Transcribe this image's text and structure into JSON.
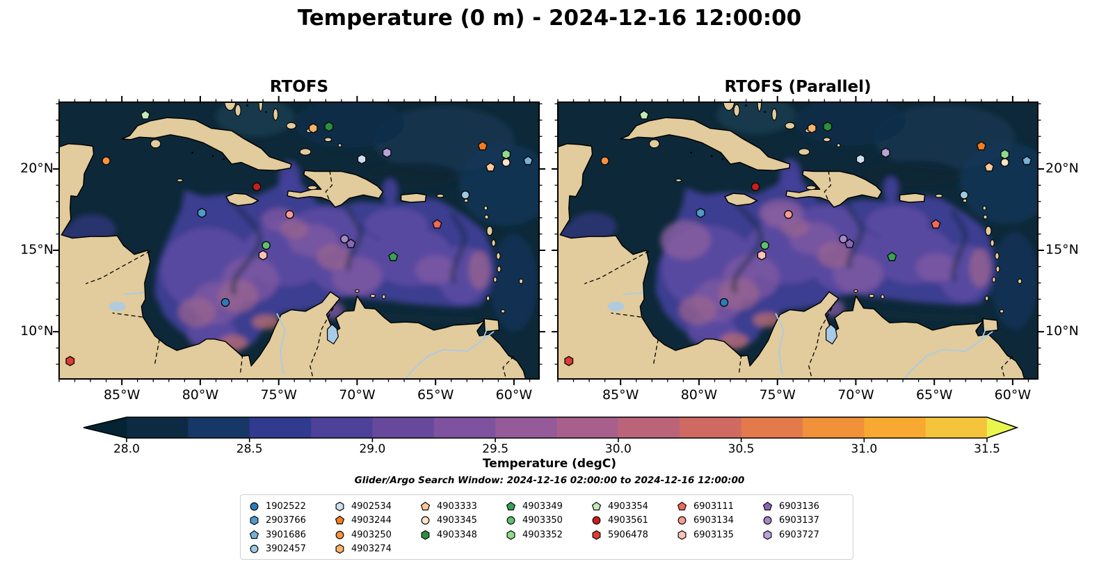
{
  "chart_data": {
    "type": "heatmap",
    "title": "Temperature (0 m) - 2024-12-16 12:00:00",
    "panels": [
      "RTOFS",
      "RTOFS (Parallel)"
    ],
    "extent": {
      "lon_west": -89.0,
      "lon_east": -58.4,
      "lat_south": 7.1,
      "lat_north": 24.1
    },
    "x_tick_labels": [
      "85°W",
      "80°W",
      "75°W",
      "70°W",
      "65°W",
      "60°W"
    ],
    "x_tick_lons": [
      -85,
      -80,
      -75,
      -70,
      -65,
      -60
    ],
    "y_tick_labels": [
      "20°N",
      "15°N",
      "10°N"
    ],
    "y_tick_lats": [
      20,
      15,
      10
    ],
    "colorbar": {
      "label": "Temperature (degC)",
      "tick_labels": [
        "28.0",
        "28.5",
        "29.0",
        "29.5",
        "30.0",
        "30.5",
        "31.0",
        "31.5"
      ],
      "tick_values": [
        28.0,
        28.5,
        29.0,
        29.5,
        30.0,
        30.5,
        31.0,
        31.5
      ],
      "vmin": 28.0,
      "vmax": 31.5,
      "step": 0.25,
      "segment_colors": [
        "#0c2b42",
        "#173866",
        "#303a8e",
        "#4d4199",
        "#67499c",
        "#7e529e",
        "#945a99",
        "#a85f8b",
        "#bb6479",
        "#cf6a62",
        "#e37a4b",
        "#f19139",
        "#f8a931",
        "#f4c53c"
      ],
      "under_color": "#042333",
      "over_color": "#eaf54e"
    },
    "annotation": "Glider/Argo Search Window: 2024-12-16 02:00:00 to 2024-12-16 12:00:00",
    "legend_column_counts": [
      4,
      4,
      3,
      3,
      3,
      3,
      3
    ],
    "floats": [
      {
        "id": "1902522",
        "shape": "circle",
        "color": "#2c7cba",
        "lon": -78.4,
        "lat": 11.8
      },
      {
        "id": "2903766",
        "shape": "hexagon",
        "color": "#4f9bcc",
        "lon": -79.9,
        "lat": 17.3
      },
      {
        "id": "3901686",
        "shape": "pentagon",
        "color": "#74b2d8",
        "lon": -59.1,
        "lat": 20.5
      },
      {
        "id": "3902457",
        "shape": "circle",
        "color": "#9ecae1",
        "lon": -63.1,
        "lat": 18.4
      },
      {
        "id": "4902534",
        "shape": "hexagon",
        "color": "#cde0f1",
        "lon": -69.7,
        "lat": 20.6
      },
      {
        "id": "4903244",
        "shape": "pentagon",
        "color": "#f47d20",
        "lon": -62.0,
        "lat": 21.4
      },
      {
        "id": "4903250",
        "shape": "circle",
        "color": "#fd9140",
        "lon": -86.0,
        "lat": 20.5
      },
      {
        "id": "4903274",
        "shape": "hexagon",
        "color": "#fdb269",
        "lon": -72.8,
        "lat": 22.5
      },
      {
        "id": "4903333",
        "shape": "pentagon",
        "color": "#fdc999",
        "lon": -61.5,
        "lat": 20.1
      },
      {
        "id": "4903345",
        "shape": "circle",
        "color": "#fee3c8",
        "lon": -60.5,
        "lat": 20.4
      },
      {
        "id": "4903348",
        "shape": "hexagon",
        "color": "#27913f",
        "lon": -71.8,
        "lat": 22.6
      },
      {
        "id": "4903349",
        "shape": "pentagon",
        "color": "#36a353",
        "lon": -67.7,
        "lat": 14.6
      },
      {
        "id": "4903350",
        "shape": "circle",
        "color": "#5fc06d",
        "lon": -75.8,
        "lat": 15.3
      },
      {
        "id": "4903352",
        "shape": "hexagon",
        "color": "#8fd98b",
        "lon": -60.5,
        "lat": 20.9
      },
      {
        "id": "4903354",
        "shape": "pentagon",
        "color": "#c4eaba",
        "lon": -83.5,
        "lat": 23.3
      },
      {
        "id": "4903561",
        "shape": "circle",
        "color": "#cc1c1e",
        "lon": -76.4,
        "lat": 18.9
      },
      {
        "id": "5906478",
        "shape": "hexagon",
        "color": "#dc3c31",
        "lon": -88.3,
        "lat": 8.2
      },
      {
        "id": "6903111",
        "shape": "pentagon",
        "color": "#f0695a",
        "lon": -64.9,
        "lat": 16.6
      },
      {
        "id": "6903134",
        "shape": "circle",
        "color": "#f89c93",
        "lon": -74.3,
        "lat": 17.2
      },
      {
        "id": "6903135",
        "shape": "hexagon",
        "color": "#fcc3b9",
        "lon": -76.0,
        "lat": 14.7
      },
      {
        "id": "6903136",
        "shape": "pentagon",
        "color": "#8a66b8",
        "lon": -70.4,
        "lat": 15.4
      },
      {
        "id": "6903137",
        "shape": "circle",
        "color": "#a189c8",
        "lon": -70.8,
        "lat": 15.7
      },
      {
        "id": "6903727",
        "shape": "hexagon",
        "color": "#b7a3d9",
        "lon": -68.1,
        "lat": 21.0
      }
    ],
    "map_colors": {
      "sea": "#0d2939",
      "land": "#e2cb9c",
      "water_feature": "#a9cbe8",
      "coastline": "#000000"
    }
  }
}
